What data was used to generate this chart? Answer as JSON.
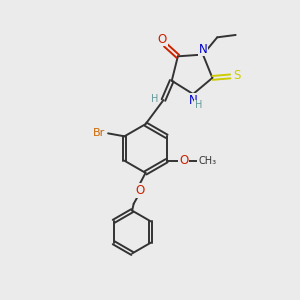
{
  "bg_color": "#ebebeb",
  "colors": {
    "O": "#cc2200",
    "N": "#0000cc",
    "S": "#cccc00",
    "Br": "#cc6600",
    "C": "#333333",
    "H": "#669999"
  }
}
